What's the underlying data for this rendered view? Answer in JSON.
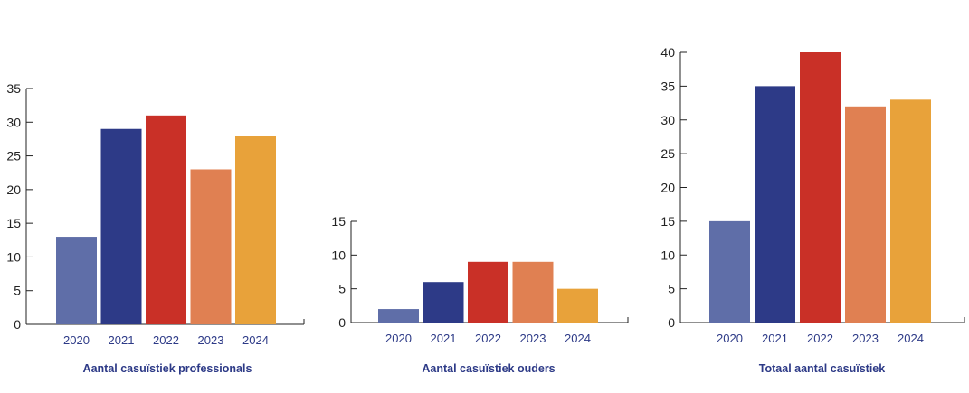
{
  "chart_data": [
    {
      "type": "bar",
      "title": "Aantal casuïstiek professionals",
      "categories": [
        "2020",
        "2021",
        "2022",
        "2023",
        "2024"
      ],
      "values": [
        13,
        29,
        31,
        23,
        28
      ],
      "ylim": [
        0,
        35
      ],
      "yticks": [
        0,
        5,
        10,
        15,
        20,
        25,
        30,
        35
      ],
      "grid": false
    },
    {
      "type": "bar",
      "title": "Aantal casuïstiek ouders",
      "categories": [
        "2020",
        "2021",
        "2022",
        "2023",
        "2024"
      ],
      "values": [
        2,
        6,
        9,
        9,
        5
      ],
      "ylim": [
        0,
        15
      ],
      "yticks": [
        0,
        5,
        10,
        15
      ],
      "grid": false
    },
    {
      "type": "bar",
      "title": "Totaal aantal casuïstiek",
      "categories": [
        "2020",
        "2021",
        "2022",
        "2023",
        "2024"
      ],
      "values": [
        15,
        35,
        40,
        32,
        33
      ],
      "ylim": [
        0,
        40
      ],
      "yticks": [
        0,
        5,
        10,
        15,
        20,
        25,
        30,
        35,
        40
      ],
      "grid": false
    }
  ],
  "colors": {
    "bars": [
      "#5f6ea8",
      "#2d3a87",
      "#c93027",
      "#e08052",
      "#e8a23a"
    ],
    "title": "#2d3a87",
    "axis": "#222222"
  }
}
